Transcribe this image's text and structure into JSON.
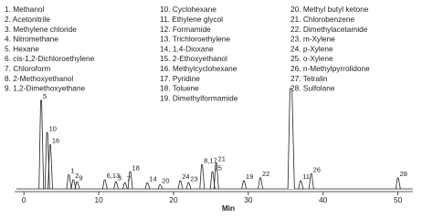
{
  "chart_data": {
    "type": "chromatogram",
    "legend_items": [
      "1. Methanol",
      "2. Acetonitrile",
      "3. Methylene chloride",
      "4. Nitromethane",
      "5. Hexane",
      "6. cis-1,2-Dichloroethylene",
      "7. Chloroform",
      "8. 2-Methoxyethanol",
      "9. 1,2-Dimethoxyethane",
      "10. Cyclohexane",
      "11. Ethylene glycol",
      "12. Formamide",
      "13. Trichloroethylene",
      "14. 1,4-Dioxane",
      "15. 2-Ethoxyethanol",
      "16. Methylcyclohexane",
      "17. Pyridine",
      "18. Toluene",
      "19. Dimethylformamide",
      "20. Methyl butyl ketone",
      "21. Chlorobenzene",
      "22. Dimethylacetamide",
      "23. m-Xylene",
      "24. p-Xylene",
      "25. o-Xylene",
      "26. n-Methylpyrrolidone",
      "27. Tetralin",
      "28. Sulfolane"
    ],
    "x_label": "Min",
    "x": [
      2.3,
      3.1,
      3.5,
      6.0,
      6.6,
      7.1,
      10.8,
      12.3,
      13.5,
      14.2,
      16.5,
      18.2,
      20.9,
      22.0,
      23.8,
      25.2,
      25.7,
      29.4,
      31.6,
      35.7,
      37.0,
      38.4,
      50.0
    ],
    "values": [
      88,
      56,
      44,
      14,
      9,
      7,
      9,
      7,
      6,
      17,
      6,
      4,
      8,
      6,
      24,
      17,
      26,
      8,
      11,
      100,
      8,
      15,
      11
    ],
    "peak_labels": [
      "5",
      "10",
      "16",
      "1",
      "2",
      "9",
      "6,13",
      "3",
      "7",
      "18",
      "14",
      "20",
      "24",
      "23",
      "8,17",
      "25",
      "21",
      "19",
      "22",
      null,
      "11",
      "26",
      "28"
    ],
    "color": "#222222",
    "xlim": [
      -1,
      52
    ],
    "xticks": [
      0,
      10,
      20,
      30,
      40,
      50
    ],
    "ylim": [
      0,
      100
    ]
  }
}
